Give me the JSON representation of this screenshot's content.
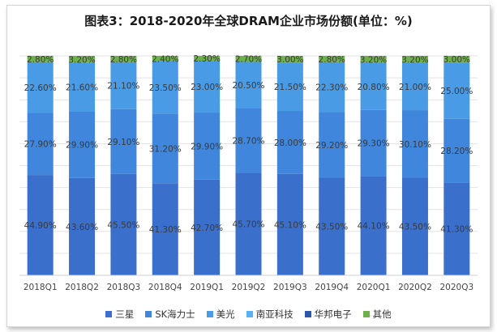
{
  "chart_data": {
    "type": "bar",
    "stacked": true,
    "percent_stacked": true,
    "title": "图表3：2018-2020年全球DRAM企业市场份额(单位：%)",
    "xlabel": "",
    "ylabel": "",
    "ylim": [
      0,
      100
    ],
    "grid": true,
    "legend_position": "bottom",
    "categories": [
      "2018Q1",
      "2018Q2",
      "2018Q3",
      "2018Q4",
      "2019Q1",
      "2019Q2",
      "2019Q3",
      "2019Q4",
      "2020Q1",
      "2020Q2",
      "2020Q3"
    ],
    "series": [
      {
        "name": "三星",
        "color": "#3a6fcc",
        "values": [
          44.9,
          43.6,
          45.5,
          41.3,
          42.7,
          45.7,
          45.1,
          43.5,
          44.1,
          43.5,
          41.3
        ],
        "labels": [
          "44.90%",
          "43.60%",
          "45.50%",
          "41.30%",
          "42.70%",
          "45.70%",
          "45.10%",
          "43.50%",
          "44.10%",
          "43.50%",
          "41.30%"
        ]
      },
      {
        "name": "SK海力士",
        "color": "#3f86dc",
        "values": [
          27.9,
          29.9,
          29.1,
          31.2,
          29.9,
          28.7,
          28.0,
          29.2,
          29.3,
          30.1,
          28.2
        ],
        "labels": [
          "27.90%",
          "29.90%",
          "29.10%",
          "31.20%",
          "29.90%",
          "28.70%",
          "28.00%",
          "29.20%",
          "29.30%",
          "30.10%",
          "28.20%"
        ]
      },
      {
        "name": "美光",
        "color": "#4a9be6",
        "values": [
          22.6,
          21.6,
          21.1,
          23.5,
          23.0,
          20.5,
          21.5,
          22.3,
          20.8,
          21.0,
          25.0
        ],
        "labels": [
          "22.60%",
          "21.60%",
          "21.10%",
          "23.50%",
          "23.00%",
          "20.50%",
          "21.50%",
          "22.30%",
          "20.80%",
          "21.00%",
          "25.00%"
        ]
      },
      {
        "name": "南亚科技",
        "color": "#58b2f0",
        "values": [
          0,
          0,
          0,
          0,
          0,
          0,
          0,
          0,
          0,
          0,
          0
        ],
        "labels": [
          "",
          "",
          "",
          "",
          "",
          "",
          "",
          "",
          "",
          "",
          ""
        ]
      },
      {
        "name": "华邦电子",
        "color": "#2b58a8",
        "values": [
          0,
          0,
          0,
          0,
          0,
          0,
          0,
          0,
          0,
          0,
          0
        ],
        "labels": [
          "",
          "",
          "",
          "",
          "",
          "",
          "",
          "",
          "",
          "",
          ""
        ]
      },
      {
        "name": "其他",
        "color": "#6eb04a",
        "values": [
          2.8,
          3.2,
          2.8,
          2.4,
          2.3,
          2.7,
          3.0,
          2.8,
          3.2,
          3.2,
          3.0
        ],
        "labels": [
          "2.80%",
          "3.20%",
          "2.80%",
          "2.40%",
          "2.30%",
          "2.70%",
          "3.00%",
          "2.80%",
          "3.20%",
          "3.20%",
          "3.00%"
        ]
      }
    ]
  }
}
